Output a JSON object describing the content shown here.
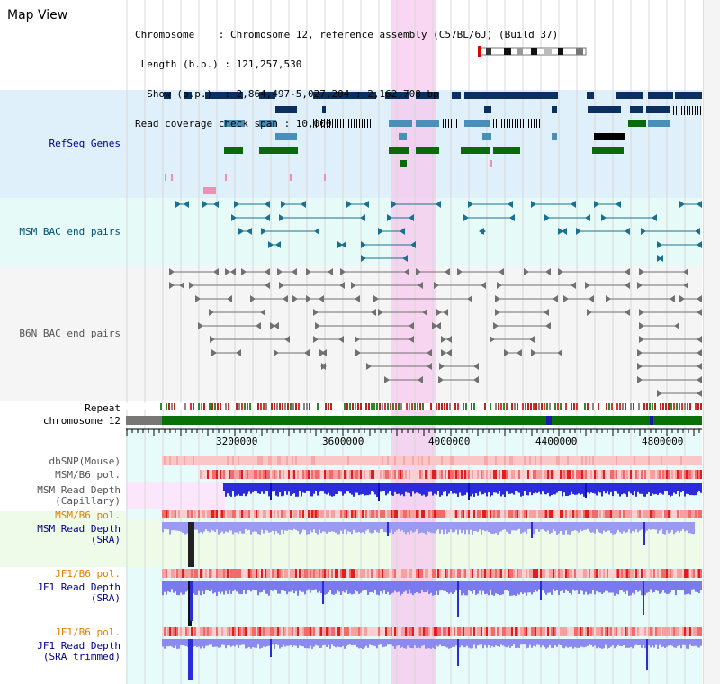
{
  "header": {
    "title": "Map View",
    "info_lines": [
      "Chromosome    : Chromosome 12, reference assembly (C57BL/6J) (Build 37)",
      "Length (b.p.) : 121,257,530",
      "Show (b.p.)  : 2,864,497-5,027,204 : 2,162,708 bp",
      "Read coverage check span : 10,000"
    ]
  },
  "tracks": {
    "refseq": "RefSeq Genes",
    "msm_bac": "MSM BAC end pairs",
    "b6n_bac": "B6N BAC end pairs",
    "repeat": "Repeat",
    "chromosome": "chromosome 12",
    "dbsnp": "dbSNP(Mouse)",
    "msm_pol": "MSM/B6 pol.",
    "msm_depth_cap_1": "MSM Read Depth",
    "msm_depth_cap_2": "(Capillary)",
    "msm_pol_sra": "MSM/B6 pol.",
    "msm_depth_sra_1": "MSM Read Depth",
    "msm_depth_sra_2": "(SRA)",
    "jf1_pol": "JF1/B6 pol.",
    "jf1_depth_1": "JF1 Read Depth",
    "jf1_depth_2": "(SRA)",
    "jf1_pol_trim": "JF1/B6 pol.",
    "jf1_depth_trim_1": "JF1 Read Depth",
    "jf1_depth_trim_2": "(SRA trimmed)"
  },
  "axis": {
    "ticks": [
      "3200000",
      "3600000",
      "4000000",
      "4400000",
      "4800000"
    ]
  },
  "colors": {
    "highlight": "#f5c6ec",
    "gene_dark": "#0b2f5e",
    "gene_light": "#4a8fb8",
    "gene_green": "#0a6a0a",
    "bac_teal": "#1a7090",
    "bac_gray": "#707070",
    "chrom_green": "#0a700a"
  }
}
